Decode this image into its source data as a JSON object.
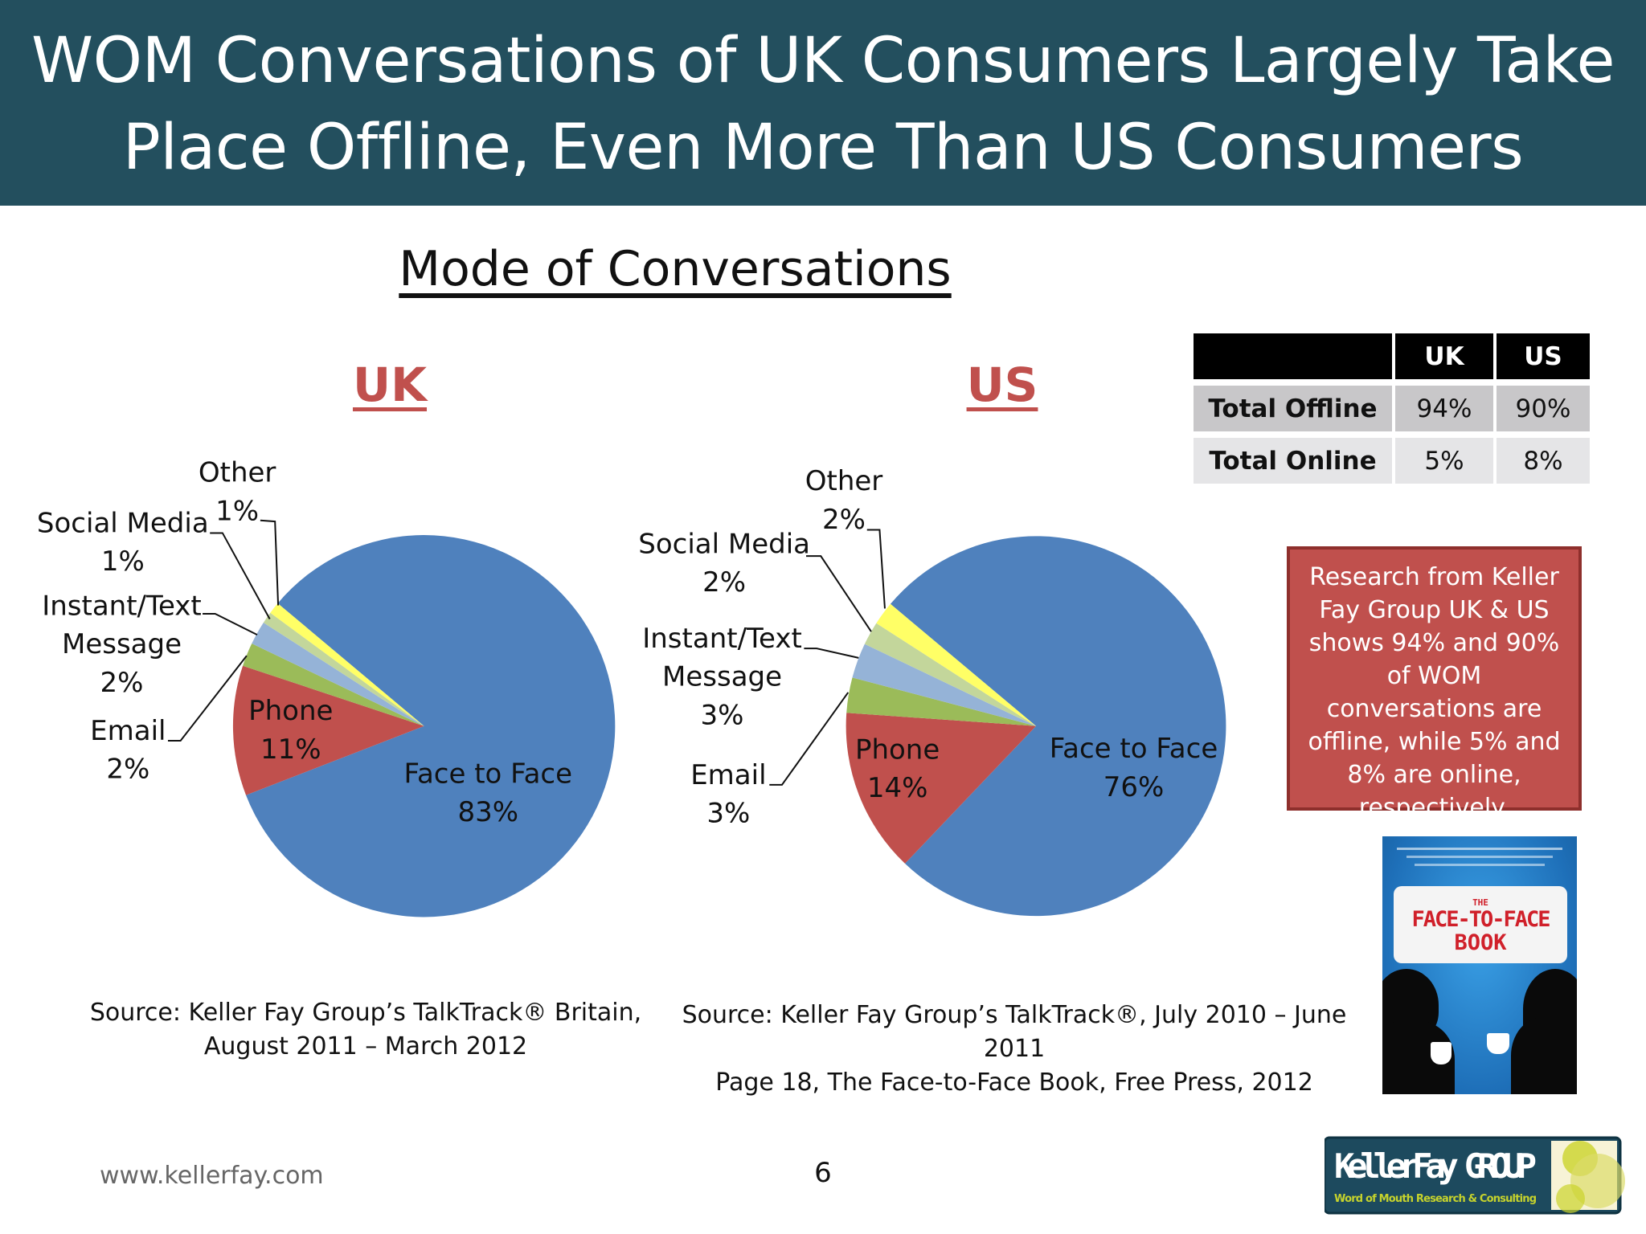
{
  "header": {
    "title_line1": "WOM Conversations of UK Consumers Largely Take",
    "title_line2": "Place Offline, Even More Than US Consumers"
  },
  "subtitle": "Mode of Conversations",
  "colors": {
    "header_bg": "#234f5e",
    "accent_red": "#c0504d",
    "face_to_face": "#4f81bd",
    "phone": "#c0504d",
    "email": "#9bbb59",
    "instant_text": "#95b3d7",
    "social_media": "#c3d69b",
    "other": "#ffff66"
  },
  "chart_data": [
    {
      "type": "pie",
      "title": "UK",
      "categories": [
        "Face to Face",
        "Phone",
        "Email",
        "Instant/Text Message",
        "Social Media",
        "Other"
      ],
      "values": [
        83,
        11,
        2,
        2,
        1,
        1
      ],
      "value_labels": [
        "83%",
        "11%",
        "2%",
        "2%",
        "1%",
        "1%"
      ],
      "colors": [
        "#4f81bd",
        "#c0504d",
        "#9bbb59",
        "#95b3d7",
        "#c3d69b",
        "#ffff66"
      ],
      "legend": "none"
    },
    {
      "type": "pie",
      "title": "US",
      "categories": [
        "Face to Face",
        "Phone",
        "Email",
        "Instant/Text Message",
        "Social Media",
        "Other"
      ],
      "values": [
        76,
        14,
        3,
        3,
        2,
        2
      ],
      "value_labels": [
        "76%",
        "14%",
        "3%",
        "3%",
        "2%",
        "2%"
      ],
      "colors": [
        "#4f81bd",
        "#c0504d",
        "#9bbb59",
        "#95b3d7",
        "#c3d69b",
        "#ffff66"
      ],
      "legend": "none"
    }
  ],
  "summary_table": {
    "headers": [
      "",
      "UK",
      "US"
    ],
    "rows": [
      {
        "label": "Total Offline",
        "uk": "94%",
        "us": "90%"
      },
      {
        "label": "Total Online",
        "uk": "5%",
        "us": "8%"
      }
    ]
  },
  "note": "Research from Keller Fay Group UK & US shows 94% and 90% of WOM conversations are offline, while 5% and 8% are online, respectively.",
  "sources": {
    "uk_line1": "Source: Keller Fay Group’s TalkTrack® Britain,",
    "uk_line2": "August 2011 – March 2012",
    "us_line1": "Source: Keller Fay Group’s TalkTrack®, July 2010 – June 2011",
    "us_line2": "Page 18, The Face-to-Face Book, Free Press, 2012"
  },
  "book_cover": {
    "the": "THE",
    "title1": "FACE-TO-FACE",
    "title2": "BOOK"
  },
  "logo": {
    "name": "KellerFay GROUP",
    "tagline": "Word of Mouth Research & Consulting"
  },
  "footer": {
    "url": "www.kellerfay.com",
    "page": "6"
  }
}
